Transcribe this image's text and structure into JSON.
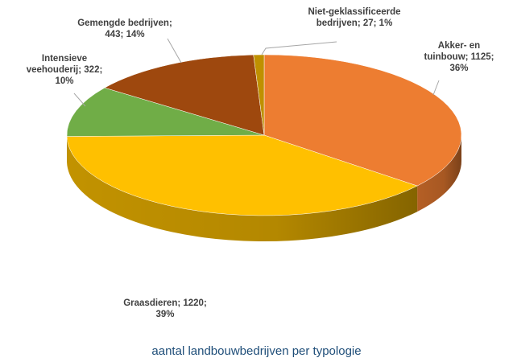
{
  "chart_data": {
    "type": "pie",
    "title": "aantal landbouwbedrijven per typologie",
    "categories": [
      "Akker- en tuinbouw",
      "Graasdieren",
      "Intensieve veehouderij",
      "Gemengde bedrijven",
      "Niet-geklassificeerde bedrijven"
    ],
    "values": [
      1125,
      1220,
      322,
      443,
      27
    ],
    "value_labels": [
      "; 1125; 36%",
      "; 1220; 39%",
      "; 322; 10%",
      "; 443; 14%",
      "; 27; 1%"
    ],
    "colors": [
      "#ed7d31",
      "#ffc000",
      "#70ad47",
      "#9e480e",
      "#bf9000"
    ],
    "start_angle": 90,
    "direction": "clockwise",
    "style": "3d"
  }
}
